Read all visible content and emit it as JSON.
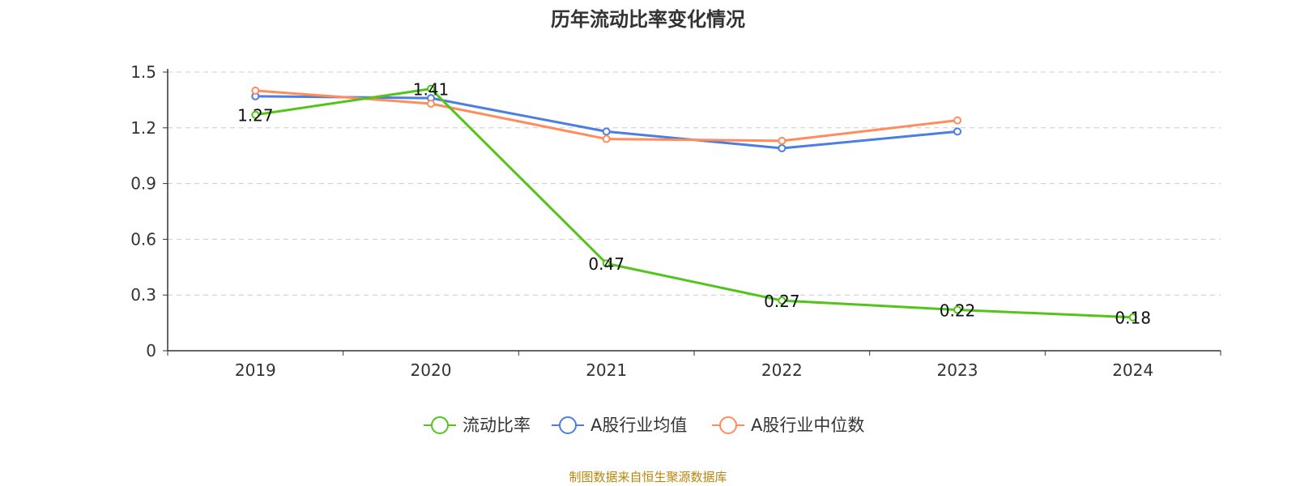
{
  "title": "历年流动比率变化情况",
  "source_note": "制图数据来自恒生聚源数据库",
  "colors": {
    "current_ratio": "#52c41a",
    "industry_mean": "#4a7ee0",
    "industry_median": "#ff8c5a",
    "axis": "#333333",
    "grid": "#cccccc",
    "source": "#b8860b"
  },
  "chart_data": {
    "type": "line",
    "title": "历年流动比率变化情况",
    "xlabel": "",
    "ylabel": "",
    "categories": [
      "2019",
      "2020",
      "2021",
      "2022",
      "2023",
      "2024"
    ],
    "ylim": [
      0,
      1.5
    ],
    "yticks": [
      "0",
      "0.3",
      "0.6",
      "0.9",
      "1.2",
      "1.5"
    ],
    "grid": true,
    "legend_position": "bottom-center",
    "series": [
      {
        "name": "流动比率",
        "values": [
          1.27,
          1.41,
          0.47,
          0.27,
          0.22,
          0.18
        ],
        "labels": [
          "1.27",
          "1.41",
          "0.47",
          "0.27",
          "0.22",
          "0.18"
        ],
        "color": "#52c41a"
      },
      {
        "name": "A股行业均值",
        "values": [
          1.37,
          1.36,
          1.18,
          1.09,
          1.18,
          null
        ],
        "color": "#4a7ee0"
      },
      {
        "name": "A股行业中位数",
        "values": [
          1.4,
          1.33,
          1.14,
          1.13,
          1.24,
          null
        ],
        "color": "#ff8c5a"
      }
    ]
  }
}
